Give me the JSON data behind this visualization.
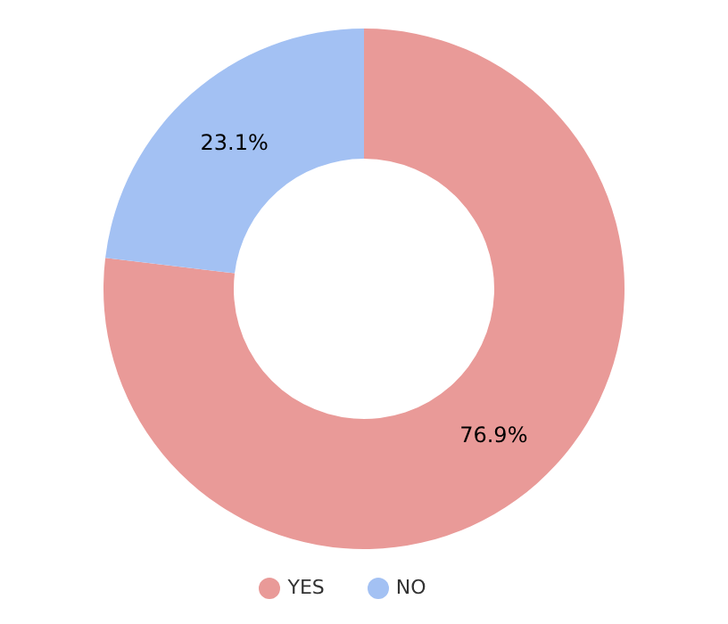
{
  "chart_data": {
    "type": "donut",
    "categories": [
      "YES",
      "NO"
    ],
    "values": [
      76.9,
      23.1
    ],
    "value_labels": [
      "76.9%",
      "23.1%"
    ],
    "colors": [
      "#e99a98",
      "#a3c1f3"
    ],
    "legend": "bottom"
  }
}
